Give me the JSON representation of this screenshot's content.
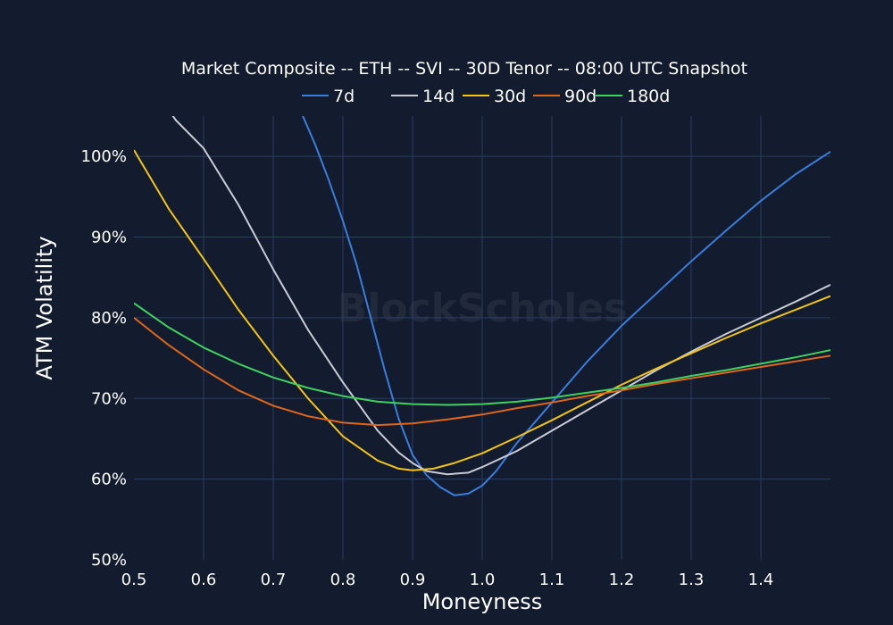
{
  "colors": {
    "background": "#131c2e",
    "grid": "#2a3d66",
    "text": "#ffffff"
  },
  "watermark": "BlockScholes",
  "chart_data": {
    "type": "line",
    "title": "Market Composite -- ETH -- SVI -- 30D Tenor -- 08:00 UTC Snapshot",
    "xlabel": "Moneyness",
    "ylabel": "ATM Volatility",
    "xlim": [
      0.5,
      1.5
    ],
    "ylim": [
      50,
      105
    ],
    "x_ticks": [
      0.5,
      0.6,
      0.7,
      0.8,
      0.9,
      1.0,
      1.1,
      1.2,
      1.3,
      1.4
    ],
    "x_tick_labels": [
      "0.5",
      "0.6",
      "0.7",
      "0.8",
      "0.9",
      "1.0",
      "1.1",
      "1.2",
      "1.3",
      "1.4"
    ],
    "y_ticks": [
      50,
      60,
      70,
      80,
      90,
      100
    ],
    "y_tick_labels": [
      "50%",
      "60%",
      "70%",
      "80%",
      "90%",
      "100%"
    ],
    "grid": true,
    "legend_position": "top-center",
    "series": [
      {
        "name": "7d",
        "color": "#3b7ddd",
        "points": [
          [
            0.72,
            110.0
          ],
          [
            0.74,
            105.5
          ],
          [
            0.76,
            101.5
          ],
          [
            0.78,
            97.0
          ],
          [
            0.8,
            92.0
          ],
          [
            0.82,
            86.5
          ],
          [
            0.84,
            80.0
          ],
          [
            0.86,
            73.5
          ],
          [
            0.88,
            67.5
          ],
          [
            0.9,
            63.0
          ],
          [
            0.92,
            60.5
          ],
          [
            0.94,
            59.0
          ],
          [
            0.96,
            58.0
          ],
          [
            0.98,
            58.2
          ],
          [
            1.0,
            59.2
          ],
          [
            1.02,
            61.0
          ],
          [
            1.05,
            64.5
          ],
          [
            1.1,
            69.5
          ],
          [
            1.15,
            74.5
          ],
          [
            1.2,
            79.0
          ],
          [
            1.25,
            83.0
          ],
          [
            1.3,
            87.0
          ],
          [
            1.35,
            90.8
          ],
          [
            1.4,
            94.5
          ],
          [
            1.45,
            97.8
          ],
          [
            1.5,
            100.6
          ]
        ]
      },
      {
        "name": "14d",
        "color": "#c9ccd6",
        "points": [
          [
            0.54,
            107.0
          ],
          [
            0.56,
            104.5
          ],
          [
            0.6,
            101.0
          ],
          [
            0.65,
            94.0
          ],
          [
            0.7,
            86.0
          ],
          [
            0.75,
            78.5
          ],
          [
            0.8,
            72.0
          ],
          [
            0.85,
            66.0
          ],
          [
            0.88,
            63.3
          ],
          [
            0.9,
            62.0
          ],
          [
            0.92,
            61.0
          ],
          [
            0.95,
            60.6
          ],
          [
            0.98,
            60.8
          ],
          [
            1.0,
            61.5
          ],
          [
            1.05,
            63.5
          ],
          [
            1.1,
            66.0
          ],
          [
            1.15,
            68.5
          ],
          [
            1.2,
            71.0
          ],
          [
            1.25,
            73.5
          ],
          [
            1.3,
            75.8
          ],
          [
            1.35,
            78.0
          ],
          [
            1.4,
            80.0
          ],
          [
            1.45,
            82.0
          ],
          [
            1.5,
            84.1
          ]
        ]
      },
      {
        "name": "30d",
        "color": "#f2c318",
        "points": [
          [
            0.5,
            100.8
          ],
          [
            0.55,
            93.5
          ],
          [
            0.6,
            87.3
          ],
          [
            0.65,
            81.0
          ],
          [
            0.7,
            75.3
          ],
          [
            0.75,
            70.0
          ],
          [
            0.8,
            65.3
          ],
          [
            0.85,
            62.3
          ],
          [
            0.88,
            61.3
          ],
          [
            0.9,
            61.1
          ],
          [
            0.93,
            61.3
          ],
          [
            0.96,
            62.0
          ],
          [
            1.0,
            63.2
          ],
          [
            1.05,
            65.2
          ],
          [
            1.1,
            67.3
          ],
          [
            1.15,
            69.5
          ],
          [
            1.2,
            71.7
          ],
          [
            1.25,
            73.7
          ],
          [
            1.3,
            75.6
          ],
          [
            1.35,
            77.5
          ],
          [
            1.4,
            79.3
          ],
          [
            1.45,
            81.0
          ],
          [
            1.5,
            82.7
          ]
        ]
      },
      {
        "name": "90d",
        "color": "#e0661c",
        "points": [
          [
            0.5,
            80.0
          ],
          [
            0.55,
            76.6
          ],
          [
            0.6,
            73.6
          ],
          [
            0.65,
            71.0
          ],
          [
            0.7,
            69.1
          ],
          [
            0.75,
            67.8
          ],
          [
            0.8,
            67.0
          ],
          [
            0.85,
            66.7
          ],
          [
            0.9,
            66.9
          ],
          [
            0.95,
            67.4
          ],
          [
            1.0,
            68.0
          ],
          [
            1.05,
            68.8
          ],
          [
            1.1,
            69.5
          ],
          [
            1.15,
            70.3
          ],
          [
            1.2,
            71.0
          ],
          [
            1.25,
            71.8
          ],
          [
            1.3,
            72.5
          ],
          [
            1.35,
            73.2
          ],
          [
            1.4,
            73.9
          ],
          [
            1.45,
            74.6
          ],
          [
            1.5,
            75.3
          ]
        ]
      },
      {
        "name": "180d",
        "color": "#3ed160",
        "points": [
          [
            0.5,
            81.8
          ],
          [
            0.55,
            78.8
          ],
          [
            0.6,
            76.3
          ],
          [
            0.65,
            74.3
          ],
          [
            0.7,
            72.6
          ],
          [
            0.75,
            71.3
          ],
          [
            0.8,
            70.3
          ],
          [
            0.85,
            69.6
          ],
          [
            0.9,
            69.3
          ],
          [
            0.95,
            69.2
          ],
          [
            1.0,
            69.3
          ],
          [
            1.05,
            69.6
          ],
          [
            1.1,
            70.1
          ],
          [
            1.15,
            70.7
          ],
          [
            1.2,
            71.3
          ],
          [
            1.25,
            72.0
          ],
          [
            1.3,
            72.8
          ],
          [
            1.35,
            73.5
          ],
          [
            1.4,
            74.3
          ],
          [
            1.45,
            75.1
          ],
          [
            1.5,
            76.0
          ]
        ]
      }
    ]
  }
}
